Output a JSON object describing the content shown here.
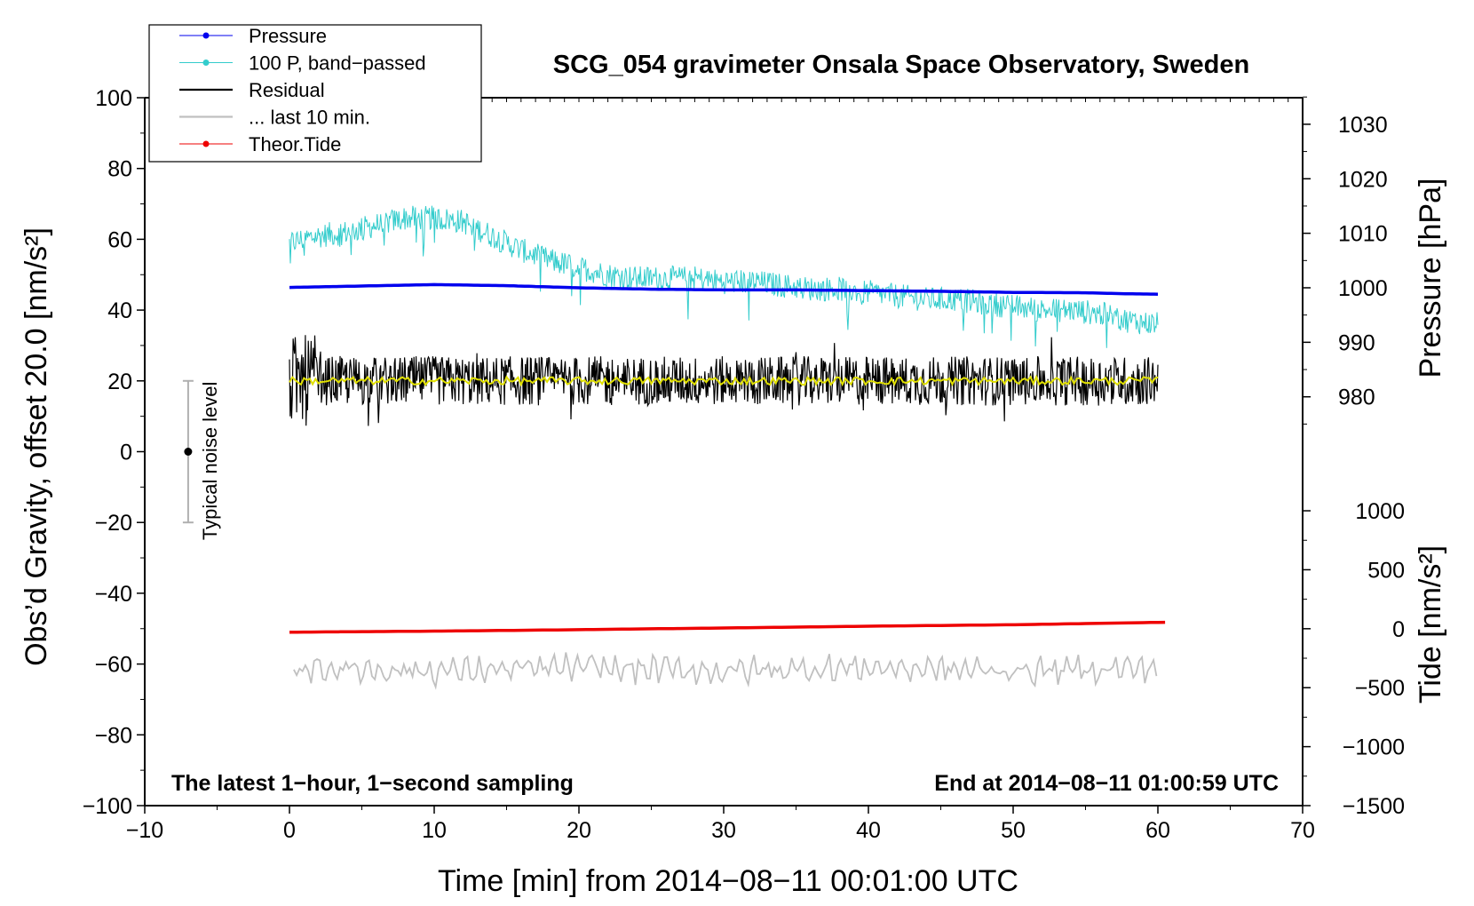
{
  "chart_data": {
    "type": "line",
    "title": "SCG_054 gravimeter Onsala Space Observatory, Sweden",
    "xlabel": "Time [min] from 2014−08−11 00:01:00 UTC",
    "ylabel_left": "Obs’d Gravity, offset 20.0 [nm/s²]",
    "ylabel_right_pressure": "Pressure [hPa]",
    "ylabel_right_tide": "Tide [nm/s²]",
    "xlim": [
      -10,
      70
    ],
    "ylim_left": [
      -100,
      100
    ],
    "x_ticks": [
      -10,
      0,
      10,
      20,
      30,
      40,
      50,
      60,
      70
    ],
    "x_tick_labels": [
      "−10",
      "0",
      "10",
      "20",
      "30",
      "40",
      "50",
      "60",
      "70"
    ],
    "y_left_ticks": [
      100,
      80,
      60,
      40,
      20,
      0,
      -20,
      -40,
      -60,
      -80,
      -100
    ],
    "y_left_tick_labels": [
      "100",
      "80",
      "60",
      "40",
      "20",
      "0",
      "−20",
      "−40",
      "−60",
      "−80",
      "−100"
    ],
    "pressure_ticks": [
      1030,
      1020,
      1010,
      1000,
      990,
      980
    ],
    "pressure_tick_labels": [
      "1030",
      "1020",
      "1010",
      "1000",
      "990",
      "980"
    ],
    "pressure_mapping": {
      "p1": 1030,
      "y1": 92.5,
      "p2": 980,
      "y2": 15.5
    },
    "tide_ticks": [
      1000,
      500,
      0,
      -500,
      -1000,
      -1500
    ],
    "tide_tick_labels": [
      "1000",
      "500",
      "0",
      "−500",
      "−1000",
      "−1500"
    ],
    "tide_mapping": {
      "t1": 1000,
      "y1": -16.7,
      "t2": -1500,
      "y2": -100
    },
    "legend": [
      {
        "label": "Pressure",
        "color": "#0000ee",
        "marker": true
      },
      {
        "label": "100 P, band−passed",
        "color": "#33cccc",
        "marker": true
      },
      {
        "label": "Residual",
        "color": "#000000",
        "marker": false
      },
      {
        "label": "... last 10 min.",
        "color": "#c0c0c0",
        "marker": false
      },
      {
        "label": "Theor.Tide",
        "color": "#ee0000",
        "marker": true
      }
    ],
    "noise_level": {
      "label": "Typical noise level",
      "x": -7,
      "center": 0,
      "low": -20,
      "high": 20
    },
    "annotation_left": "The latest 1−hour, 1−second sampling",
    "annotation_right": "End at 2014−08−11 01:00:59 UTC",
    "series": [
      {
        "name": "Pressure",
        "color": "#0000ee",
        "x": [
          0,
          5,
          10,
          15,
          20,
          25,
          30,
          35,
          40,
          45,
          50,
          55,
          58,
          60
        ],
        "values": [
          46.4,
          46.8,
          47.2,
          46.9,
          46.3,
          45.9,
          45.7,
          45.7,
          45.5,
          45.3,
          45.0,
          44.9,
          44.6,
          44.5
        ]
      },
      {
        "name": "100 P, band−passed",
        "color": "#33cccc",
        "x": [
          0,
          2,
          4,
          6,
          8,
          10,
          12,
          14,
          16,
          18,
          20,
          22,
          24,
          26,
          28,
          30,
          32,
          34,
          36,
          38,
          40,
          42,
          44,
          46,
          48,
          50,
          52,
          54,
          56,
          58,
          60
        ],
        "values": [
          59,
          61,
          62,
          64,
          66,
          66,
          65,
          61,
          57,
          54,
          52,
          50,
          49,
          49,
          49,
          48,
          48,
          47,
          46,
          46,
          45,
          44,
          43,
          43,
          42,
          41,
          40,
          40,
          39,
          37,
          36
        ]
      },
      {
        "name": "Residual",
        "color": "#000000",
        "x": [
          0,
          10,
          20,
          30,
          40,
          50,
          60
        ],
        "values": [
          20,
          20,
          20,
          20,
          20,
          20,
          20
        ]
      },
      {
        "name": "Theor.Tide",
        "color": "#ee0000",
        "x": [
          0,
          10,
          20,
          30,
          40,
          50,
          60.5
        ],
        "values": [
          -51.0,
          -50.7,
          -50.3,
          -49.8,
          -49.3,
          -48.9,
          -48.2
        ]
      },
      {
        "name": "... last 10 min.",
        "color": "#c0c0c0",
        "x": [
          0.3,
          10,
          20,
          30,
          40,
          50,
          60
        ],
        "values": [
          -61,
          -62,
          -61,
          -62,
          -61,
          -62,
          -61
        ]
      }
    ]
  }
}
